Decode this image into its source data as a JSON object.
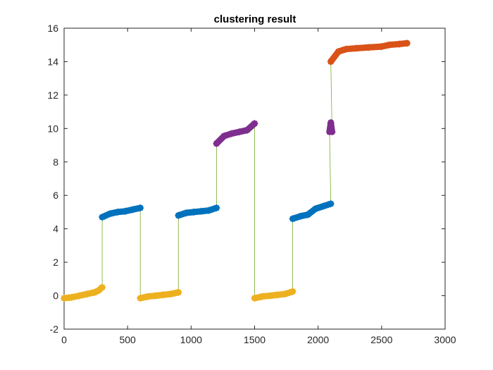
{
  "chart_data": {
    "type": "scatter",
    "title": "clustering result",
    "xlabel": "",
    "ylabel": "",
    "xlim": [
      0,
      3000
    ],
    "ylim": [
      -2,
      16
    ],
    "xticks": [
      0,
      500,
      1000,
      1500,
      2000,
      2500,
      3000
    ],
    "yticks": [
      -2,
      0,
      2,
      4,
      6,
      8,
      10,
      12,
      14,
      16
    ],
    "grid": false,
    "legend": "none",
    "marker": "asterisk",
    "connecting_line": {
      "color": "#77AC30",
      "description": "thin line joining consecutive points in order"
    },
    "cluster_colors": {
      "yellow": "#EDB120",
      "blue": "#0072BD",
      "purple": "#7E2F8E",
      "orange": "#D95319"
    },
    "segments": [
      {
        "cluster": "yellow",
        "x": [
          0,
          60,
          120,
          180,
          240,
          270,
          300
        ],
        "y": [
          -0.15,
          -0.1,
          0.0,
          0.1,
          0.2,
          0.3,
          0.5
        ]
      },
      {
        "cluster": "blue",
        "x": [
          300,
          360,
          420,
          480,
          540,
          600
        ],
        "y": [
          4.7,
          4.9,
          5.0,
          5.05,
          5.15,
          5.25
        ]
      },
      {
        "cluster": "yellow",
        "x": [
          600,
          660,
          720,
          780,
          840,
          900
        ],
        "y": [
          -0.15,
          -0.05,
          0.0,
          0.05,
          0.1,
          0.2
        ]
      },
      {
        "cluster": "blue",
        "x": [
          900,
          960,
          1020,
          1080,
          1140,
          1200
        ],
        "y": [
          4.8,
          4.95,
          5.0,
          5.05,
          5.1,
          5.25
        ]
      },
      {
        "cluster": "purple",
        "x": [
          1200,
          1260,
          1320,
          1380,
          1440,
          1500
        ],
        "y": [
          9.1,
          9.55,
          9.7,
          9.8,
          9.9,
          10.3
        ]
      },
      {
        "cluster": "yellow",
        "x": [
          1500,
          1560,
          1620,
          1680,
          1740,
          1800
        ],
        "y": [
          -0.15,
          -0.05,
          0.0,
          0.05,
          0.1,
          0.25
        ]
      },
      {
        "cluster": "blue",
        "x": [
          1800,
          1860,
          1920,
          1980,
          2040,
          2100
        ],
        "y": [
          4.6,
          4.75,
          4.85,
          5.2,
          5.35,
          5.5
        ]
      },
      {
        "cluster": "purple",
        "x": [
          2090,
          2100,
          2110
        ],
        "y": [
          9.8,
          10.35,
          9.8
        ]
      },
      {
        "cluster": "orange",
        "x": [
          2100,
          2160,
          2220,
          2300,
          2400,
          2500,
          2560,
          2640,
          2700
        ],
        "y": [
          14.0,
          14.6,
          14.75,
          14.8,
          14.85,
          14.9,
          15.0,
          15.05,
          15.1
        ]
      }
    ]
  }
}
